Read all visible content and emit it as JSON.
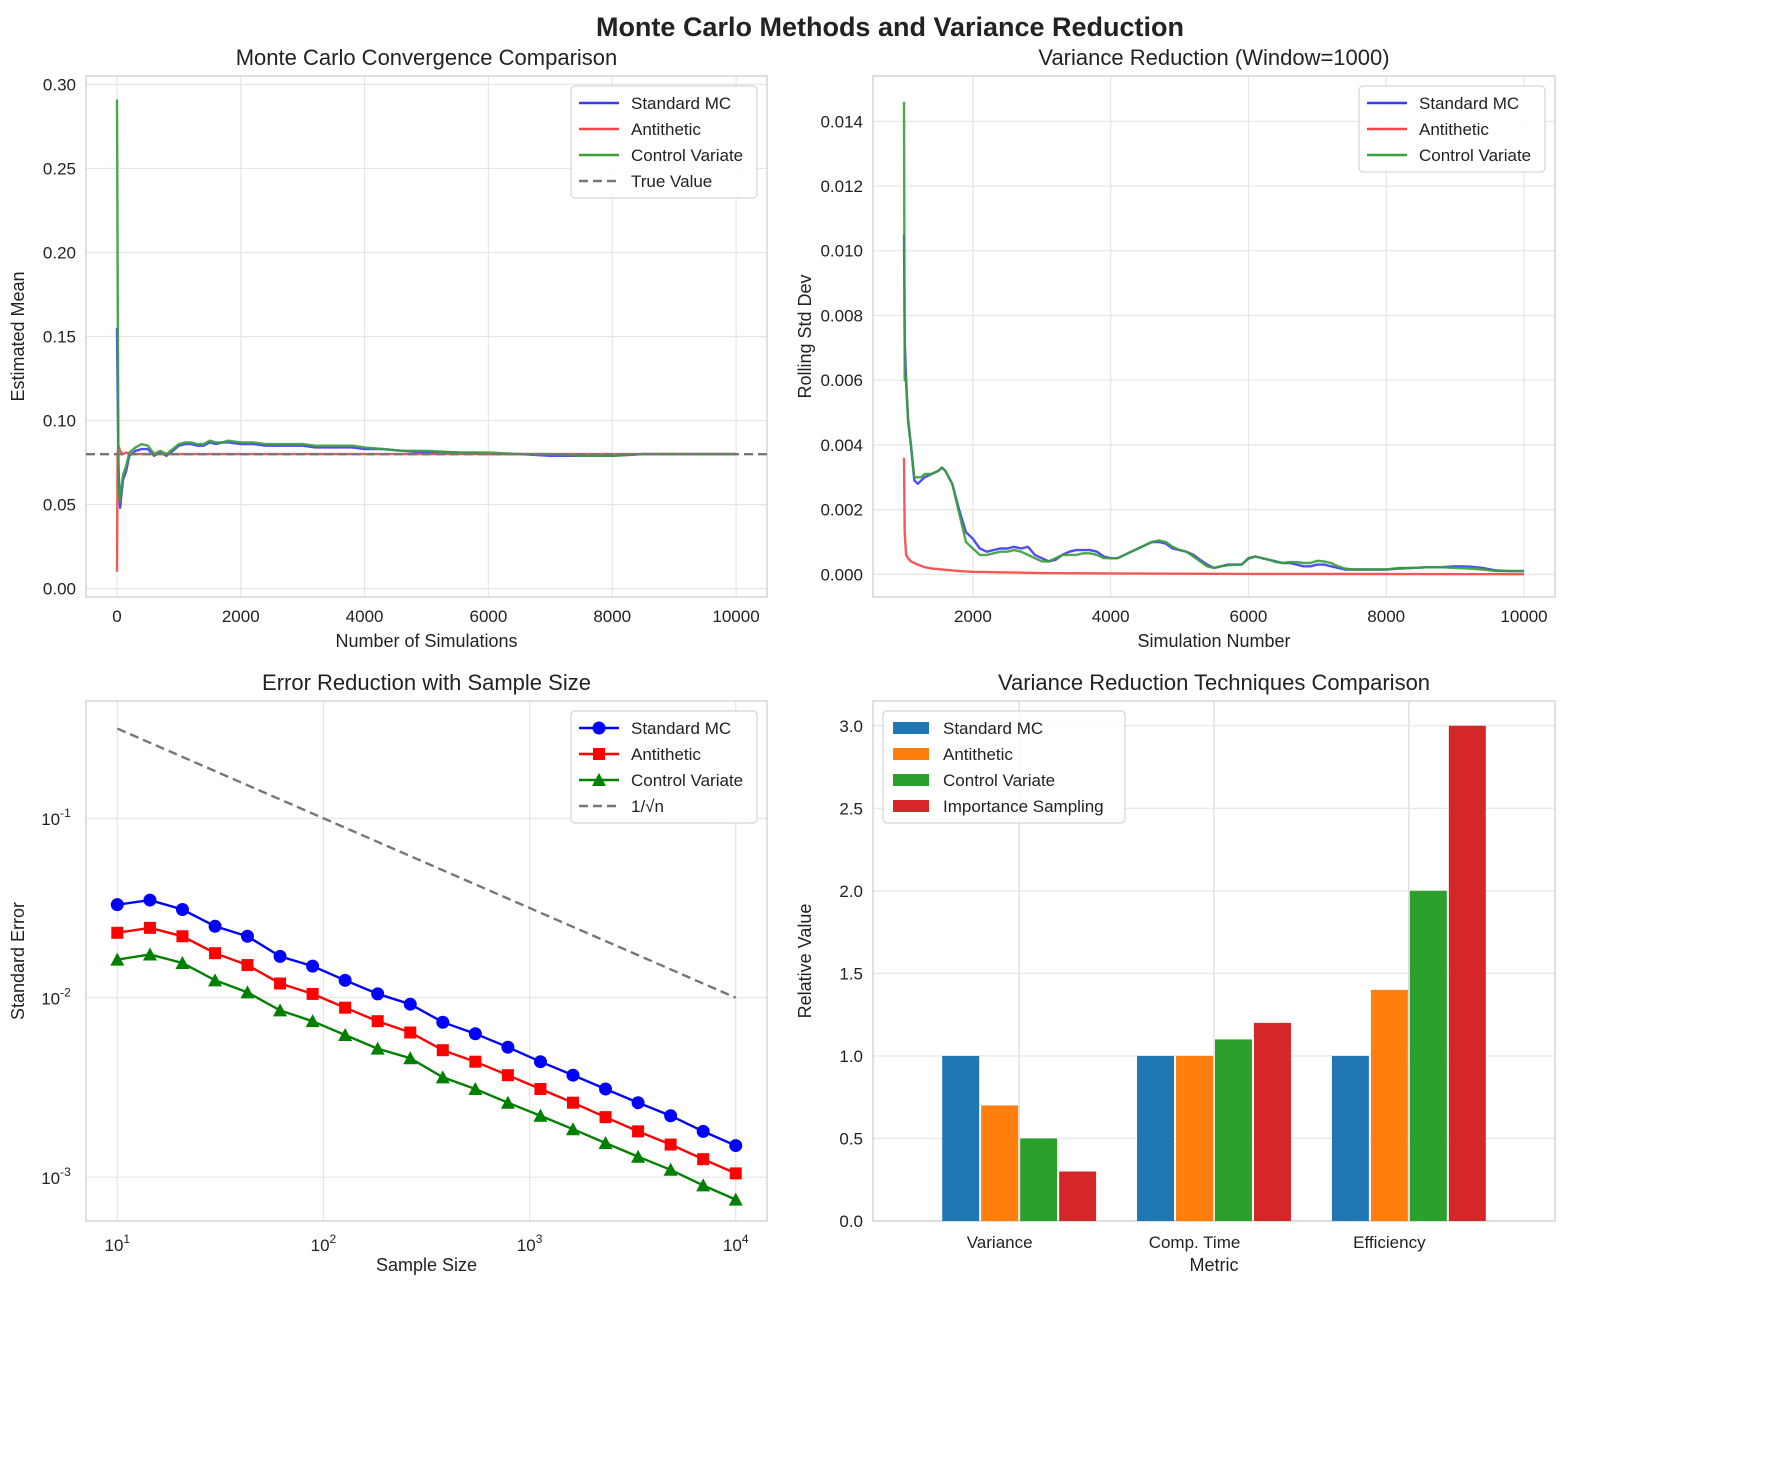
{
  "figure": {
    "suptitle": "Monte Carlo Methods and Variance Reduction"
  },
  "colors": {
    "standard": "#3b3bf5",
    "antithetic": "#f24747",
    "control": "#3a9e3a",
    "true": "#777777",
    "err_standard": "#0000ff",
    "err_antithetic": "#ff0000",
    "err_control": "#008000",
    "bar_standard": "#1f77b4",
    "bar_antithetic": "#ff7f0e",
    "bar_control": "#2ca02c",
    "bar_importance": "#d62728"
  },
  "chart_data": [
    {
      "id": "convergence",
      "type": "line",
      "title": "Monte Carlo Convergence Comparison",
      "xlabel": "Number of Simulations",
      "ylabel": "Estimated Mean",
      "xlim": [
        -500,
        10500
      ],
      "ylim": [
        -0.005,
        0.305
      ],
      "xticks": [
        0,
        2000,
        4000,
        6000,
        8000,
        10000
      ],
      "yticks": [
        0.0,
        0.05,
        0.1,
        0.15,
        0.2,
        0.25,
        0.3
      ],
      "ytick_labels": [
        "0.00",
        "0.05",
        "0.10",
        "0.15",
        "0.20",
        "0.25",
        "0.30"
      ],
      "grid": true,
      "legend_position": "top-right",
      "reference_line": {
        "name": "True Value",
        "y": 0.08
      },
      "series": [
        {
          "name": "Standard MC",
          "x": [
            1,
            25,
            50,
            100,
            150,
            200,
            300,
            400,
            500,
            600,
            700,
            800,
            900,
            1000,
            1100,
            1200,
            1300,
            1400,
            1500,
            1600,
            1700,
            1800,
            2000,
            2200,
            2400,
            2600,
            2800,
            3000,
            3200,
            3400,
            3600,
            3800,
            4000,
            4300,
            4600,
            5000,
            5500,
            6000,
            6500,
            7000,
            7500,
            8000,
            8500,
            9000,
            9500,
            10000
          ],
          "y": [
            0.155,
            0.072,
            0.048,
            0.065,
            0.07,
            0.079,
            0.082,
            0.083,
            0.083,
            0.079,
            0.081,
            0.079,
            0.082,
            0.085,
            0.086,
            0.086,
            0.085,
            0.085,
            0.087,
            0.086,
            0.087,
            0.087,
            0.086,
            0.086,
            0.085,
            0.085,
            0.085,
            0.085,
            0.084,
            0.084,
            0.084,
            0.084,
            0.083,
            0.083,
            0.082,
            0.081,
            0.081,
            0.08,
            0.08,
            0.079,
            0.079,
            0.079,
            0.08,
            0.08,
            0.08,
            0.08
          ]
        },
        {
          "name": "Antithetic",
          "x": [
            1,
            10,
            25,
            50,
            100,
            150,
            200,
            300,
            400,
            600,
            800,
            1000,
            1500,
            2000,
            3000,
            4000,
            6000,
            8000,
            10000
          ],
          "y": [
            0.01,
            0.08,
            0.085,
            0.082,
            0.08,
            0.081,
            0.08,
            0.08,
            0.08,
            0.08,
            0.08,
            0.08,
            0.08,
            0.08,
            0.08,
            0.08,
            0.08,
            0.08,
            0.08
          ]
        },
        {
          "name": "Control Variate",
          "x": [
            1,
            25,
            50,
            100,
            150,
            200,
            300,
            400,
            500,
            600,
            700,
            800,
            900,
            1000,
            1100,
            1200,
            1300,
            1400,
            1500,
            1600,
            1700,
            1800,
            2000,
            2200,
            2400,
            2600,
            2800,
            3000,
            3200,
            3400,
            3600,
            3800,
            4000,
            4300,
            4600,
            5000,
            5500,
            6000,
            6500,
            7000,
            7500,
            8000,
            8500,
            9000,
            9500,
            10000
          ],
          "y": [
            0.291,
            0.06,
            0.052,
            0.068,
            0.073,
            0.081,
            0.084,
            0.086,
            0.085,
            0.08,
            0.082,
            0.08,
            0.083,
            0.086,
            0.087,
            0.087,
            0.086,
            0.086,
            0.088,
            0.087,
            0.087,
            0.088,
            0.087,
            0.087,
            0.086,
            0.086,
            0.086,
            0.086,
            0.085,
            0.085,
            0.085,
            0.085,
            0.084,
            0.083,
            0.082,
            0.082,
            0.081,
            0.081,
            0.08,
            0.08,
            0.079,
            0.079,
            0.08,
            0.08,
            0.08,
            0.08
          ]
        }
      ]
    },
    {
      "id": "variance",
      "type": "line",
      "title": "Variance Reduction (Window=1000)",
      "xlabel": "Simulation Number",
      "ylabel": "Rolling Std Dev",
      "xlim": [
        550,
        10450
      ],
      "ylim": [
        -0.0007,
        0.0154
      ],
      "xticks": [
        2000,
        4000,
        6000,
        8000,
        10000
      ],
      "yticks": [
        0.0,
        0.002,
        0.004,
        0.006,
        0.008,
        0.01,
        0.012,
        0.014
      ],
      "ytick_labels": [
        "0.000",
        "0.002",
        "0.004",
        "0.006",
        "0.008",
        "0.010",
        "0.012",
        "0.014"
      ],
      "grid": true,
      "legend_position": "top-right",
      "series": [
        {
          "name": "Standard MC",
          "x": [
            1000,
            1010,
            1030,
            1060,
            1100,
            1150,
            1200,
            1250,
            1300,
            1400,
            1500,
            1550,
            1600,
            1700,
            1800,
            1900,
            2000,
            2100,
            2200,
            2300,
            2400,
            2500,
            2600,
            2700,
            2800,
            2900,
            3000,
            3100,
            3200,
            3300,
            3400,
            3500,
            3600,
            3700,
            3800,
            3900,
            4000,
            4100,
            4200,
            4300,
            4400,
            4500,
            4600,
            4700,
            4800,
            4900,
            5000,
            5100,
            5200,
            5300,
            5400,
            5500,
            5600,
            5700,
            5800,
            5900,
            6000,
            6100,
            6200,
            6300,
            6400,
            6500,
            6600,
            6700,
            6800,
            6900,
            7000,
            7100,
            7200,
            7300,
            7400,
            7500,
            7600,
            7700,
            7800,
            7900,
            8000,
            8200,
            8400,
            8600,
            8800,
            9000,
            9200,
            9400,
            9600,
            9800,
            10000
          ],
          "y": [
            0.0105,
            0.0073,
            0.0059,
            0.0048,
            0.004,
            0.0029,
            0.0028,
            0.0029,
            0.003,
            0.0031,
            0.0032,
            0.0033,
            0.0032,
            0.0028,
            0.002,
            0.0013,
            0.0011,
            0.0008,
            0.0007,
            0.00075,
            0.0008,
            0.0008,
            0.00085,
            0.0008,
            0.00085,
            0.0006,
            0.0005,
            0.0004,
            0.00045,
            0.0006,
            0.0007,
            0.00075,
            0.00075,
            0.00075,
            0.0007,
            0.00055,
            0.0005,
            0.0005,
            0.0006,
            0.0007,
            0.0008,
            0.0009,
            0.001,
            0.001,
            0.00095,
            0.0008,
            0.00075,
            0.0007,
            0.0006,
            0.00045,
            0.0003,
            0.0002,
            0.00025,
            0.0003,
            0.0003,
            0.0003,
            0.0005,
            0.00055,
            0.0005,
            0.00045,
            0.0004,
            0.00035,
            0.00035,
            0.0003,
            0.00025,
            0.00025,
            0.0003,
            0.0003,
            0.00025,
            0.0002,
            0.00015,
            0.00015,
            0.00015,
            0.00015,
            0.00015,
            0.00015,
            0.00015,
            0.00018,
            0.0002,
            0.00022,
            0.00022,
            0.00025,
            0.00024,
            0.0002,
            0.00012,
            0.0001,
            0.0001
          ]
        },
        {
          "name": "Antithetic",
          "x": [
            1000,
            1010,
            1030,
            1060,
            1100,
            1200,
            1300,
            1400,
            1600,
            1800,
            2000,
            2500,
            3000,
            4000,
            5000,
            6000,
            8000,
            10000
          ],
          "y": [
            0.0036,
            0.0013,
            0.0006,
            0.0005,
            0.0004,
            0.0003,
            0.00022,
            0.00018,
            0.00014,
            0.0001,
            8e-05,
            6e-05,
            4e-05,
            3e-05,
            2e-05,
            1.5e-05,
            1e-05,
            5e-06
          ]
        },
        {
          "name": "Control Variate",
          "x": [
            1000,
            1010,
            1030,
            1060,
            1100,
            1150,
            1200,
            1250,
            1300,
            1400,
            1500,
            1550,
            1600,
            1700,
            1800,
            1900,
            2000,
            2100,
            2200,
            2300,
            2400,
            2500,
            2600,
            2700,
            2800,
            2900,
            3000,
            3100,
            3200,
            3300,
            3400,
            3500,
            3600,
            3700,
            3800,
            3900,
            4000,
            4100,
            4200,
            4300,
            4400,
            4500,
            4600,
            4700,
            4800,
            4900,
            5000,
            5100,
            5200,
            5300,
            5400,
            5500,
            5600,
            5700,
            5800,
            5900,
            6000,
            6100,
            6200,
            6300,
            6400,
            6500,
            6600,
            6700,
            6800,
            6900,
            7000,
            7100,
            7200,
            7300,
            7400,
            7500,
            7600,
            7700,
            7800,
            7900,
            8000,
            8200,
            8400,
            8600,
            8800,
            9000,
            9200,
            9400,
            9600,
            9800,
            10000
          ],
          "y": [
            0.0146,
            0.006,
            0.0061,
            0.0047,
            0.004,
            0.003,
            0.003,
            0.003,
            0.0031,
            0.0031,
            0.0032,
            0.0033,
            0.0032,
            0.0028,
            0.0019,
            0.001,
            0.0008,
            0.0006,
            0.0006,
            0.00065,
            0.0007,
            0.0007,
            0.00075,
            0.0007,
            0.0006,
            0.0005,
            0.0004,
            0.0004,
            0.0005,
            0.0006,
            0.0006,
            0.0006,
            0.00065,
            0.00065,
            0.0006,
            0.0005,
            0.0005,
            0.0005,
            0.0006,
            0.0007,
            0.0008,
            0.0009,
            0.001,
            0.00105,
            0.001,
            0.00085,
            0.00075,
            0.0007,
            0.00055,
            0.0004,
            0.00025,
            0.0002,
            0.00025,
            0.00028,
            0.0003,
            0.0003,
            0.00048,
            0.00055,
            0.0005,
            0.00045,
            0.00038,
            0.00035,
            0.00038,
            0.00038,
            0.00035,
            0.00035,
            0.00042,
            0.0004,
            0.00035,
            0.00025,
            0.00018,
            0.00015,
            0.00015,
            0.00015,
            0.00015,
            0.00015,
            0.00015,
            0.0002,
            0.0002,
            0.00022,
            0.00022,
            0.0002,
            0.00018,
            0.00015,
            0.0001,
            0.0001,
            0.0001
          ]
        }
      ]
    },
    {
      "id": "error",
      "type": "line",
      "title": "Error Reduction with Sample Size",
      "xlabel": "Sample Size",
      "ylabel": "Standard Error",
      "xscale": "log",
      "yscale": "log",
      "xlim": [
        7.05,
        14180
      ],
      "ylim": [
        0.00057,
        0.45
      ],
      "xticks": [
        10,
        100,
        1000,
        10000
      ],
      "xtick_labels": [
        "10^1",
        "10^2",
        "10^3",
        "10^4"
      ],
      "yticks": [
        0.001,
        0.01,
        0.1
      ],
      "ytick_labels": [
        "10^-3",
        "10^-2",
        "10^-1"
      ],
      "grid": true,
      "legend_position": "top-right",
      "x": [
        10,
        14.4,
        20.7,
        29.8,
        42.8,
        61.6,
        88.6,
        127.4,
        183.3,
        263.7,
        379.3,
        545.6,
        784.8,
        1128.8,
        1623.8,
        2335.7,
        3359.8,
        4832.9,
        6951.9,
        10000
      ],
      "series": [
        {
          "name": "Standard MC",
          "marker": "circle",
          "values": [
            0.033,
            0.035,
            0.031,
            0.025,
            0.022,
            0.017,
            0.015,
            0.0125,
            0.0105,
            0.0092,
            0.0073,
            0.0063,
            0.0053,
            0.0044,
            0.0037,
            0.0031,
            0.0026,
            0.0022,
            0.0018,
            0.0015
          ]
        },
        {
          "name": "Antithetic",
          "marker": "square",
          "values": [
            0.023,
            0.0245,
            0.022,
            0.0177,
            0.0152,
            0.012,
            0.0105,
            0.0088,
            0.0074,
            0.0064,
            0.0051,
            0.0044,
            0.0037,
            0.0031,
            0.0026,
            0.00216,
            0.0018,
            0.00152,
            0.00126,
            0.00105
          ]
        },
        {
          "name": "Control Variate",
          "marker": "triangle",
          "values": [
            0.0163,
            0.0174,
            0.0156,
            0.0125,
            0.0107,
            0.0085,
            0.0074,
            0.0062,
            0.0052,
            0.0046,
            0.0036,
            0.0031,
            0.0026,
            0.0022,
            0.00185,
            0.00155,
            0.0013,
            0.0011,
            0.0009,
            0.00075
          ]
        }
      ],
      "reference_line": {
        "name": "1/√n",
        "x": [
          10,
          10000
        ],
        "y": [
          0.316,
          0.01
        ]
      }
    },
    {
      "id": "techniques",
      "type": "bar",
      "title": "Variance Reduction Techniques Comparison",
      "xlabel": "Metric",
      "ylabel": "Relative Value",
      "categories": [
        "Variance",
        "Comp. Time",
        "Efficiency"
      ],
      "ylim": [
        0,
        3.15
      ],
      "yticks": [
        0.0,
        0.5,
        1.0,
        1.5,
        2.0,
        2.5,
        3.0
      ],
      "ytick_labels": [
        "0.0",
        "0.5",
        "1.0",
        "1.5",
        "2.0",
        "2.5",
        "3.0"
      ],
      "grid": true,
      "legend_position": "top-left",
      "series": [
        {
          "name": "Standard MC",
          "values": [
            1.0,
            1.0,
            1.0
          ]
        },
        {
          "name": "Antithetic",
          "values": [
            0.7,
            1.0,
            1.4
          ]
        },
        {
          "name": "Control Variate",
          "values": [
            0.5,
            1.1,
            2.0
          ]
        },
        {
          "name": "Importance Sampling",
          "values": [
            0.3,
            1.2,
            3.0
          ]
        }
      ]
    }
  ]
}
